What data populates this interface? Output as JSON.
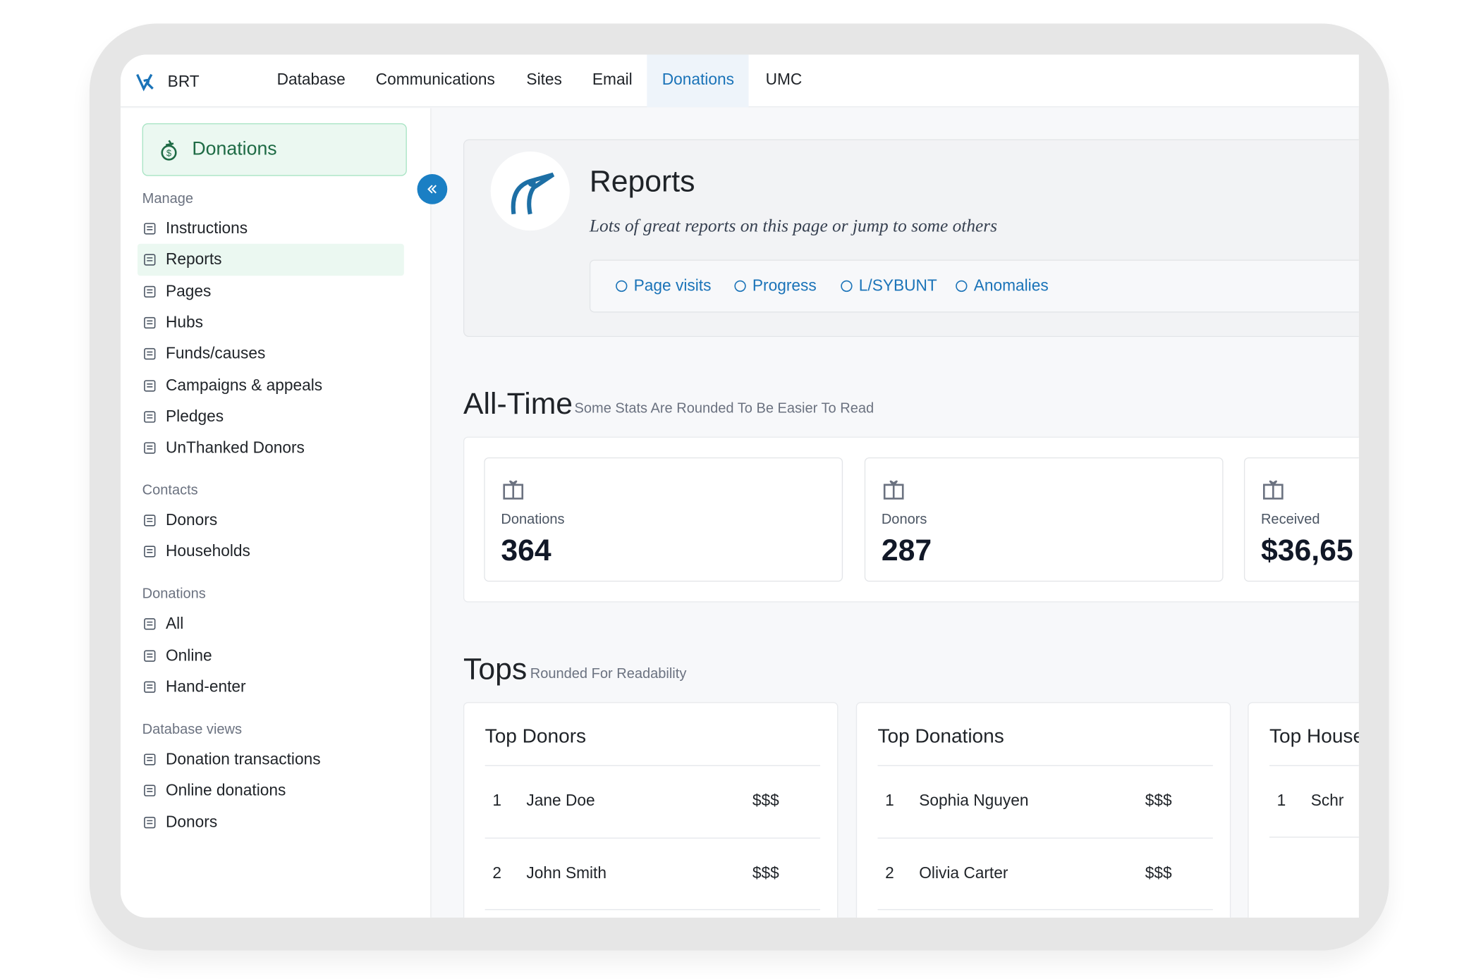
{
  "nav": {
    "brand": "BRT",
    "items": [
      "Database",
      "Communications",
      "Sites",
      "Email",
      "Donations",
      "UMC"
    ],
    "active": 4
  },
  "sidebar": {
    "title": "Donations",
    "active_section": 0,
    "active_item": 1,
    "sections": [
      {
        "label": "Manage",
        "items": [
          "Instructions",
          "Reports",
          "Pages",
          "Hubs",
          "Funds/causes",
          "Campaigns & appeals",
          "Pledges",
          "UnThanked Donors"
        ]
      },
      {
        "label": "Contacts",
        "items": [
          "Donors",
          "Households"
        ]
      },
      {
        "label": "Donations",
        "items": [
          "All",
          "Online",
          "Hand-enter"
        ]
      },
      {
        "label": "Database views",
        "items": [
          "Donation transactions",
          "Online donations",
          "Donors"
        ]
      }
    ]
  },
  "header": {
    "title": "Reports",
    "subtitle": "Lots of great reports on this page or jump to some others",
    "links": [
      "Page visits",
      "Progress",
      "L/SYBUNT",
      "Anomalies"
    ]
  },
  "all_time": {
    "title": "All-Time",
    "note": "Some Stats Are Rounded To Be Easier To Read",
    "stats": [
      {
        "label": "Donations",
        "value": 364
      },
      {
        "label": "Donors",
        "value": 287
      },
      {
        "label": "Received",
        "value": "$36,65"
      }
    ]
  },
  "tops": {
    "title": "Tops",
    "note": "Rounded For Readability",
    "lists": [
      {
        "title": "Top Donors",
        "rows": [
          [
            1,
            "Jane Doe",
            "$$$"
          ],
          [
            2,
            "John Smith",
            "$$$"
          ]
        ]
      },
      {
        "title": "Top Donations",
        "rows": [
          [
            1,
            "Sophia Nguyen",
            "$$$"
          ],
          [
            2,
            "Olivia Carter",
            "$$$"
          ]
        ]
      },
      {
        "title": "Top House",
        "rows": [
          [
            1,
            "Schr"
          ]
        ]
      }
    ]
  }
}
